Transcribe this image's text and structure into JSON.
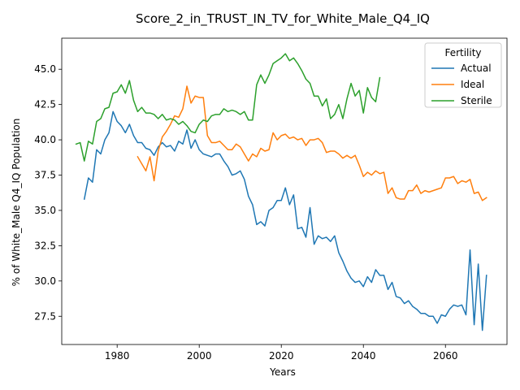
{
  "chart_data": {
    "type": "line",
    "title": "Score_2_in_TRUST_IN_TV_for_White_Male_Q4_IQ",
    "xlabel": "Years",
    "ylabel": "% of White_Male Q4_IQ Population",
    "xlim": [
      1966.5,
      2075
    ],
    "ylim": [
      25.5,
      47.2
    ],
    "x_ticks": [
      1980,
      2000,
      2020,
      2040,
      2060
    ],
    "x_tick_labels": [
      "1980",
      "2000",
      "2020",
      "2040",
      "2060"
    ],
    "y_ticks": [
      27.5,
      30.0,
      32.5,
      35.0,
      37.5,
      40.0,
      42.5,
      45.0
    ],
    "y_tick_labels": [
      "27.5",
      "30.0",
      "32.5",
      "35.0",
      "37.5",
      "40.0",
      "42.5",
      "45.0"
    ],
    "grid": false,
    "legend": {
      "title": "Fertility",
      "placement": "top-right"
    },
    "series": [
      {
        "name": "Actual",
        "color": "#1f77b4",
        "x_start": 1972,
        "values": [
          35.8,
          37.3,
          37.0,
          39.3,
          39.0,
          40.0,
          40.5,
          42.0,
          41.3,
          41.0,
          40.5,
          41.1,
          40.3,
          39.8,
          39.8,
          39.4,
          39.3,
          38.9,
          39.5,
          39.8,
          39.5,
          39.6,
          39.2,
          39.9,
          39.7,
          40.7,
          39.4,
          40.0,
          39.3,
          39.0,
          38.9,
          38.8,
          39.0,
          39.0,
          38.5,
          38.1,
          37.5,
          37.6,
          37.8,
          37.2,
          36.0,
          35.4,
          34.0,
          34.2,
          33.9,
          35.0,
          35.2,
          35.7,
          35.7,
          36.6,
          35.4,
          36.1,
          33.7,
          33.8,
          33.1,
          35.2,
          32.6,
          33.2,
          33.0,
          33.1,
          32.8,
          33.2,
          32.0,
          31.4,
          30.7,
          30.2,
          29.9,
          30.0,
          29.6,
          30.3,
          29.9,
          30.8,
          30.4,
          30.4,
          29.4,
          29.9,
          28.9,
          28.8,
          28.4,
          28.6,
          28.2,
          28.0,
          27.7,
          27.7,
          27.5,
          27.5,
          27.0,
          27.6,
          27.5,
          28.0,
          28.3,
          28.2,
          28.3,
          27.6,
          32.2,
          26.9,
          31.2,
          26.5,
          30.4
        ]
      },
      {
        "name": "Ideal",
        "color": "#ff7f0e",
        "x_start": 1985,
        "values": [
          38.8,
          38.3,
          37.8,
          38.8,
          37.1,
          39.2,
          40.2,
          40.6,
          41.1,
          41.7,
          41.6,
          42.2,
          43.8,
          42.6,
          43.1,
          43.0,
          43.0,
          40.3,
          39.8,
          39.8,
          39.9,
          39.6,
          39.3,
          39.3,
          39.7,
          39.5,
          39.0,
          38.5,
          39.0,
          38.8,
          39.4,
          39.2,
          39.3,
          40.5,
          40.0,
          40.3,
          40.4,
          40.1,
          40.2,
          40.0,
          40.1,
          39.6,
          40.0,
          40.0,
          40.1,
          39.8,
          39.1,
          39.2,
          39.2,
          39.0,
          38.7,
          38.9,
          38.7,
          38.9,
          38.2,
          37.4,
          37.7,
          37.5,
          37.8,
          37.6,
          37.7,
          36.2,
          36.6,
          35.9,
          35.8,
          35.8,
          36.4,
          36.4,
          36.8,
          36.2,
          36.4,
          36.3,
          36.4,
          36.5,
          36.6,
          37.3,
          37.3,
          37.4,
          36.9,
          37.1,
          37.0,
          37.2,
          36.2,
          36.3,
          35.7,
          35.9
        ]
      },
      {
        "name": "Sterile",
        "color": "#2ca02c",
        "x_start": 1970,
        "values": [
          39.7,
          39.8,
          38.5,
          39.9,
          39.7,
          41.3,
          41.5,
          42.2,
          42.3,
          43.3,
          43.4,
          43.9,
          43.3,
          44.2,
          42.8,
          42.0,
          42.3,
          41.9,
          41.9,
          41.8,
          41.5,
          41.8,
          41.4,
          41.5,
          41.4,
          41.1,
          41.3,
          41.0,
          40.6,
          40.5,
          41.1,
          41.4,
          41.3,
          41.7,
          41.8,
          41.8,
          42.2,
          42.0,
          42.1,
          42.0,
          41.8,
          42.0,
          41.4,
          41.4,
          43.9,
          44.6,
          44.0,
          44.6,
          45.4,
          45.6,
          45.8,
          46.1,
          45.6,
          45.8,
          45.4,
          44.9,
          44.3,
          44.0,
          43.1,
          43.1,
          42.4,
          42.9,
          41.5,
          41.8,
          42.5,
          41.5,
          42.9,
          44.0,
          43.1,
          43.5,
          41.9,
          43.7,
          43.0,
          42.7,
          44.4
        ]
      }
    ]
  }
}
